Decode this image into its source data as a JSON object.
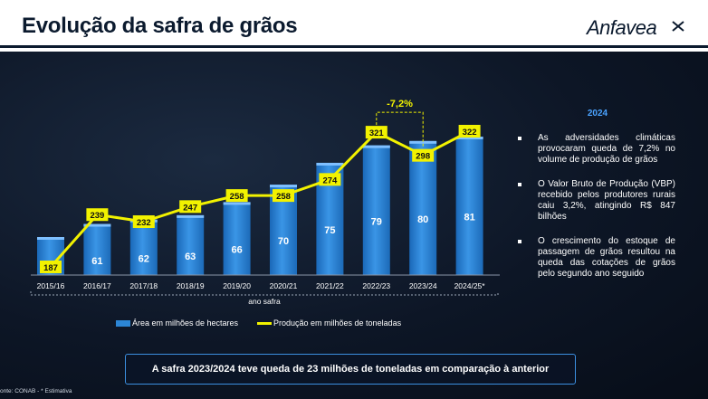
{
  "header": {
    "title": "Evolução da safra de grãos",
    "logo_text": "Anfavea"
  },
  "chart_data": {
    "type": "bar+line",
    "categories": [
      "2015/16",
      "2016/17",
      "2017/18",
      "2018/19",
      "2019/20",
      "2020/21",
      "2021/22",
      "2022/23",
      "2023/24",
      "2024/25*"
    ],
    "xlabel": "ano safra",
    "series": [
      {
        "name": "Área em milhões de hectares",
        "type": "bar",
        "color": "#2c86d6",
        "values": [
          58,
          61,
          62,
          63,
          66,
          70,
          75,
          79,
          80,
          81
        ]
      },
      {
        "name": "Produção em milhões de toneladas",
        "type": "line",
        "color": "#f2f200",
        "values": [
          187,
          239,
          232,
          247,
          258,
          258,
          274,
          321,
          298,
          322
        ]
      }
    ],
    "annotation": {
      "text": "-7,2%",
      "from": "2022/23",
      "to": "2023/24",
      "color": "#f2f200"
    },
    "legend_position": "bottom"
  },
  "side_panel": {
    "year": "2024",
    "bullets": [
      "As adversidades climáticas provocaram queda de 7,2% no volume de produção de grãos",
      "O Valor Bruto de Produção (VBP) recebido pelos produtores rurais caiu 3,2%, atingindo R$ 847 bilhões",
      "O crescimento do estoque de passagem de grãos resultou na queda das cotações de grãos pelo segundo ano seguido"
    ]
  },
  "footer": {
    "highlight": "A safra 2023/2024 teve queda de 23 milhões de toneladas em comparação à anterior",
    "source": "onte: CONAB - * Estimativa"
  }
}
